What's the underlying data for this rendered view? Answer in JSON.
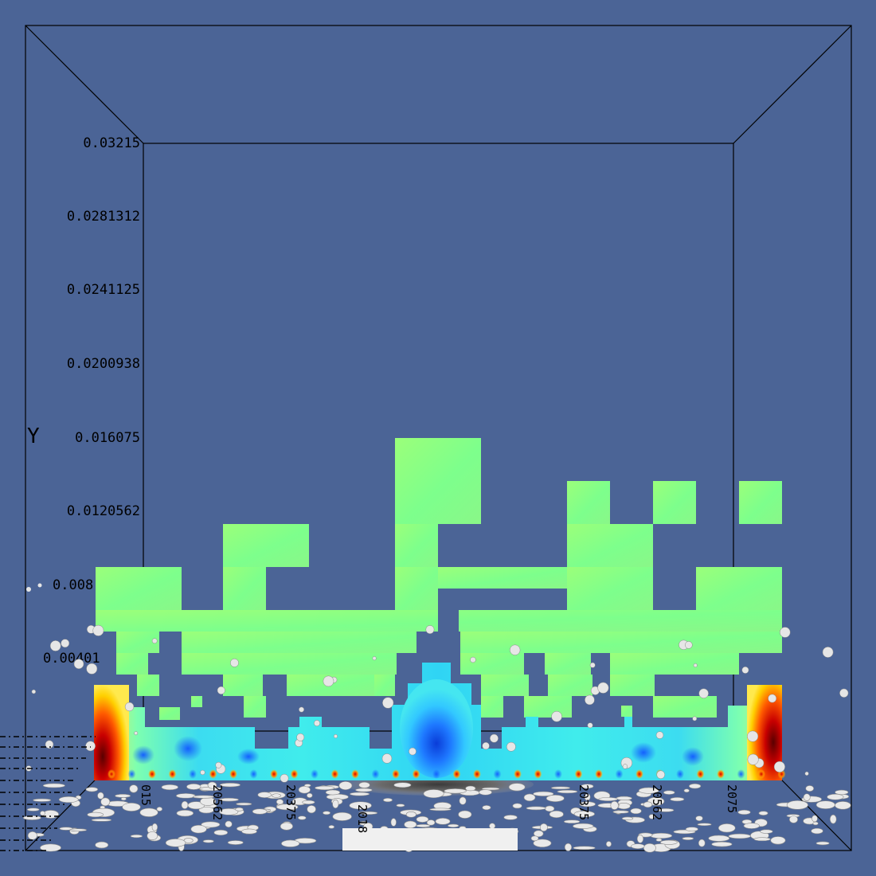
{
  "viewport": {
    "background": "#4b6496",
    "frame_color": "#000000",
    "axis_title": "Y",
    "y_ticks": [
      "0.03215",
      "0.0281312",
      "0.0241125",
      "0.0200938",
      "0.016075",
      "0.0120562",
      "0.008",
      "0.00401",
      ""
    ],
    "x_ticks": [
      "015",
      "20562",
      "20375",
      "2018",
      "",
      "20375",
      "20562",
      "2075"
    ],
    "palette": [
      "#00008c",
      "#1464ff",
      "#28c8ff",
      "#4bf0e6",
      "#7dff85",
      "#dcf050",
      "#ffd700",
      "#ff6a00",
      "#c80000",
      "#6e0000"
    ],
    "block_color": "#7fff85",
    "particle_color": "#e9e9e9"
  }
}
